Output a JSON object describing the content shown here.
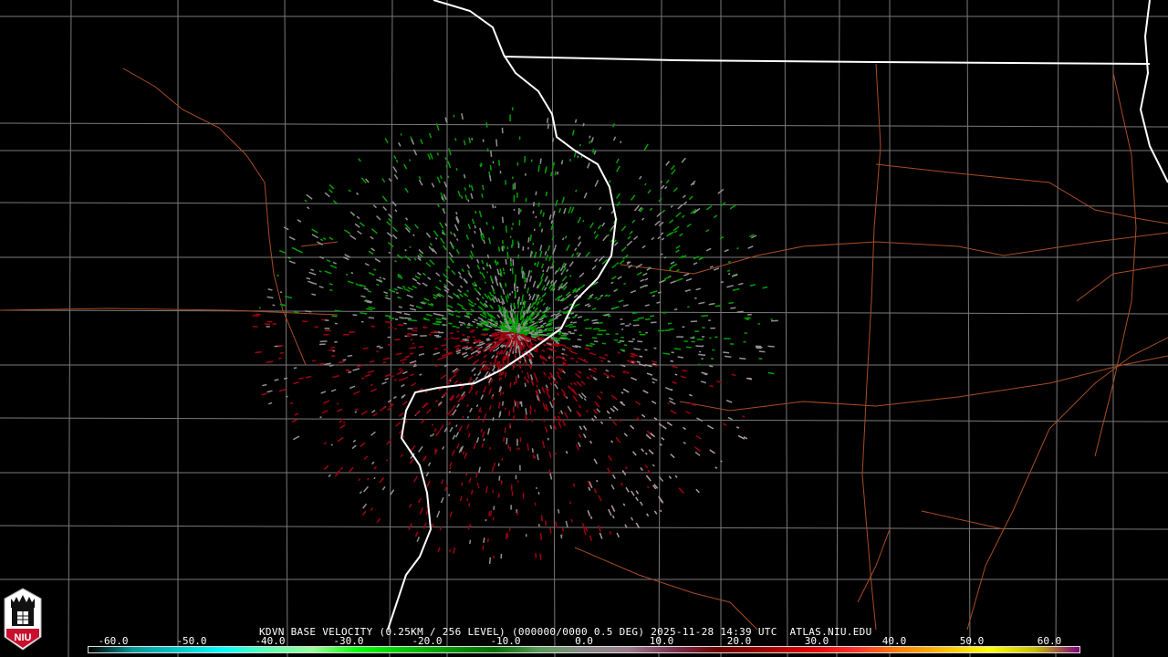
{
  "product_title": "KDVN BASE VELOCITY (0.25KM / 256 LEVEL) (000000/0000 0.5 DEG) 2025-11-28 14:39 UTC  ATLAS.NIU.EDU",
  "logo": {
    "text": "NIU",
    "name": "niu-logo"
  },
  "colorbar": {
    "unit_range": [
      -64,
      64
    ],
    "tick_labels": [
      "-60.0",
      "-50.0",
      "-40.0",
      "-30.0",
      "-20.0",
      "-10.0",
      "0.0",
      "10.0",
      "20.0",
      "30.0",
      "40.0",
      "50.0",
      "60.0"
    ],
    "tick_values": [
      -60,
      -50,
      -40,
      -30,
      -20,
      -10,
      0,
      10,
      20,
      30,
      40,
      50,
      60
    ],
    "colors": [
      "#000000",
      "#009a9a",
      "#00c8c8",
      "#00ffff",
      "#5effb0",
      "#98ff98",
      "#00ff00",
      "#00c800",
      "#009600",
      "#006e00",
      "#5a9a5a",
      "#8a8a8a",
      "#9a7a8a",
      "#7a3050",
      "#6e0000",
      "#a00000",
      "#e00000",
      "#ff3030",
      "#ff8000",
      "#ffc000",
      "#ffff00",
      "#c8c000",
      "#800080"
    ]
  },
  "map_colors": {
    "state_border": "#ffffff",
    "county_border": "#888888",
    "highway": "#b8552a",
    "inbound": "#00a000",
    "outbound": "#a00010",
    "near_zero": "#909090"
  }
}
